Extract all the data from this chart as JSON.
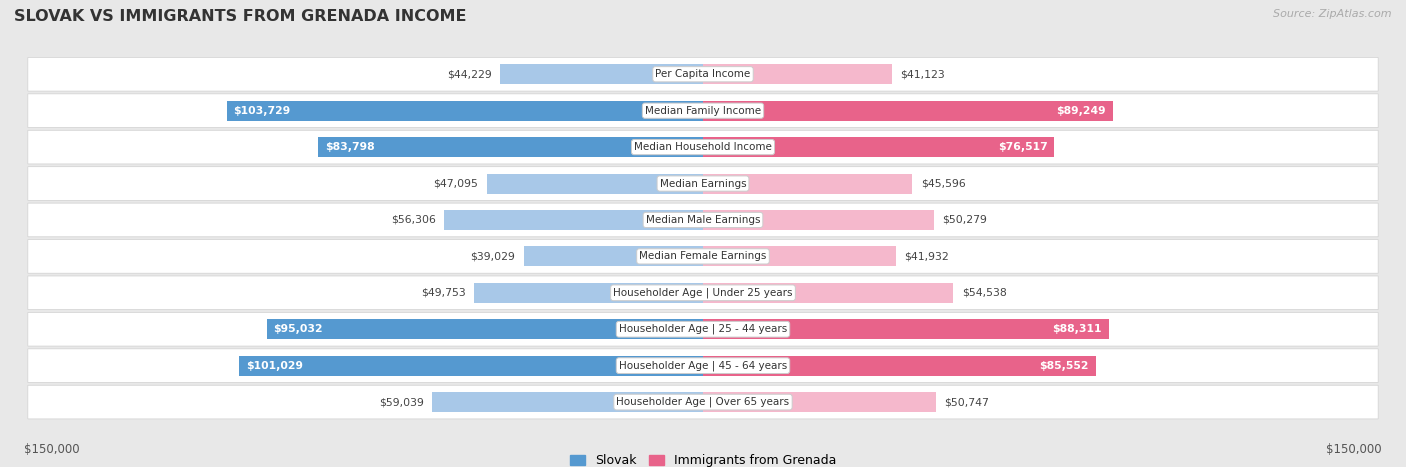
{
  "title": "SLOVAK VS IMMIGRANTS FROM GRENADA INCOME",
  "source": "Source: ZipAtlas.com",
  "categories": [
    "Per Capita Income",
    "Median Family Income",
    "Median Household Income",
    "Median Earnings",
    "Median Male Earnings",
    "Median Female Earnings",
    "Householder Age | Under 25 years",
    "Householder Age | 25 - 44 years",
    "Householder Age | 45 - 64 years",
    "Householder Age | Over 65 years"
  ],
  "slovak_values": [
    44229,
    103729,
    83798,
    47095,
    56306,
    39029,
    49753,
    95032,
    101029,
    59039
  ],
  "grenada_values": [
    41123,
    89249,
    76517,
    45596,
    50279,
    41932,
    54538,
    88311,
    85552,
    50747
  ],
  "slovak_labels": [
    "$44,229",
    "$103,729",
    "$83,798",
    "$47,095",
    "$56,306",
    "$39,029",
    "$49,753",
    "$95,032",
    "$101,029",
    "$59,039"
  ],
  "grenada_labels": [
    "$41,123",
    "$89,249",
    "$76,517",
    "$45,596",
    "$50,279",
    "$41,932",
    "$54,538",
    "$88,311",
    "$85,552",
    "$50,747"
  ],
  "max_value": 150000,
  "slovak_color_light": "#a8c8e8",
  "slovak_color_dark": "#5599d0",
  "grenada_color_light": "#f5b8cc",
  "grenada_color_dark": "#e8638a",
  "bg_color": "#e8e8e8",
  "row_bg_color": "#ffffff",
  "label_threshold_slovak": 75000,
  "label_threshold_grenada": 75000,
  "x_axis_label_left": "$150,000",
  "x_axis_label_right": "$150,000",
  "legend_slovak": "Slovak",
  "legend_grenada": "Immigrants from Grenada"
}
